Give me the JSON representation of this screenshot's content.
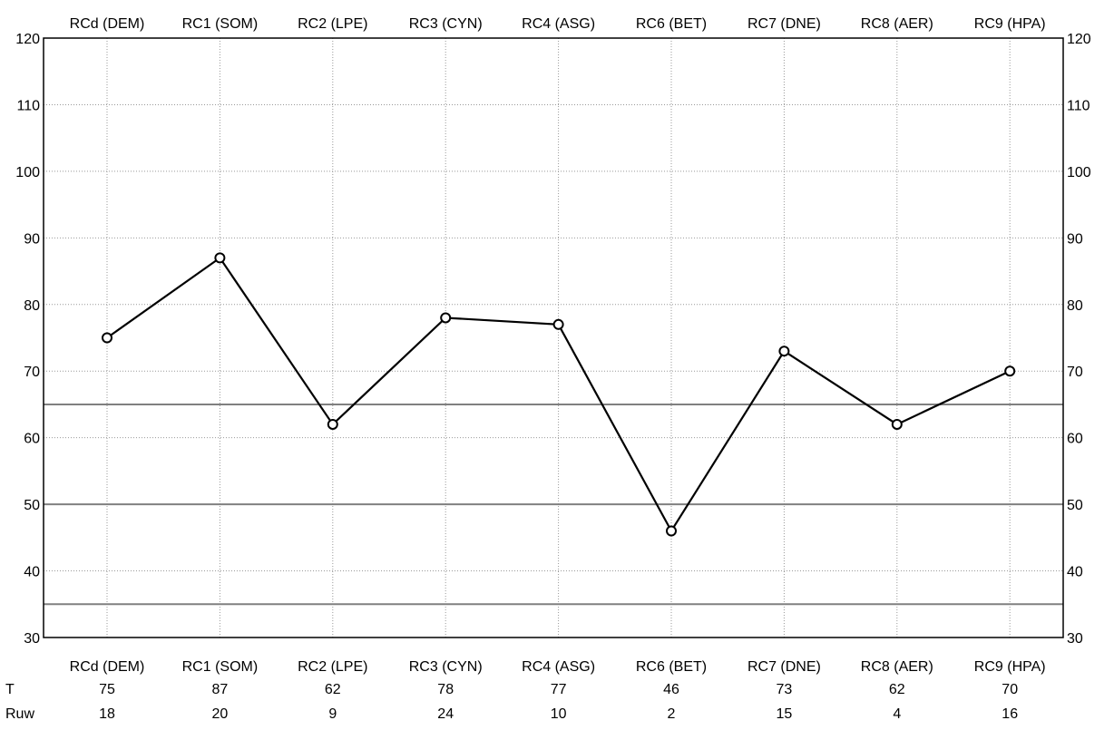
{
  "chart_data": {
    "type": "line",
    "categories": [
      "RCd (DEM)",
      "RC1 (SOM)",
      "RC2 (LPE)",
      "RC3 (CYN)",
      "RC4 (ASG)",
      "RC6 (BET)",
      "RC7 (DNE)",
      "RC8 (AER)",
      "RC9 (HPA)"
    ],
    "series": [
      {
        "values": [
          75,
          87,
          62,
          78,
          77,
          46,
          73,
          62,
          70
        ]
      }
    ],
    "ylim": [
      30,
      120
    ],
    "yticks": [
      30,
      40,
      50,
      60,
      70,
      80,
      90,
      100,
      110,
      120
    ],
    "reference_lines": [
      65,
      50,
      35
    ],
    "grid": true,
    "marker": "open-circle",
    "line_color": "#000000",
    "reference_line_color": "#808080",
    "grid_color": "#999999",
    "table_rows": [
      {
        "label": "T",
        "values": [
          "75",
          "87",
          "62",
          "78",
          "77",
          "46",
          "73",
          "62",
          "70"
        ]
      },
      {
        "label": "Ruw",
        "values": [
          "18",
          "20",
          "9",
          "24",
          "10",
          "2",
          "15",
          "4",
          "16"
        ]
      }
    ]
  }
}
